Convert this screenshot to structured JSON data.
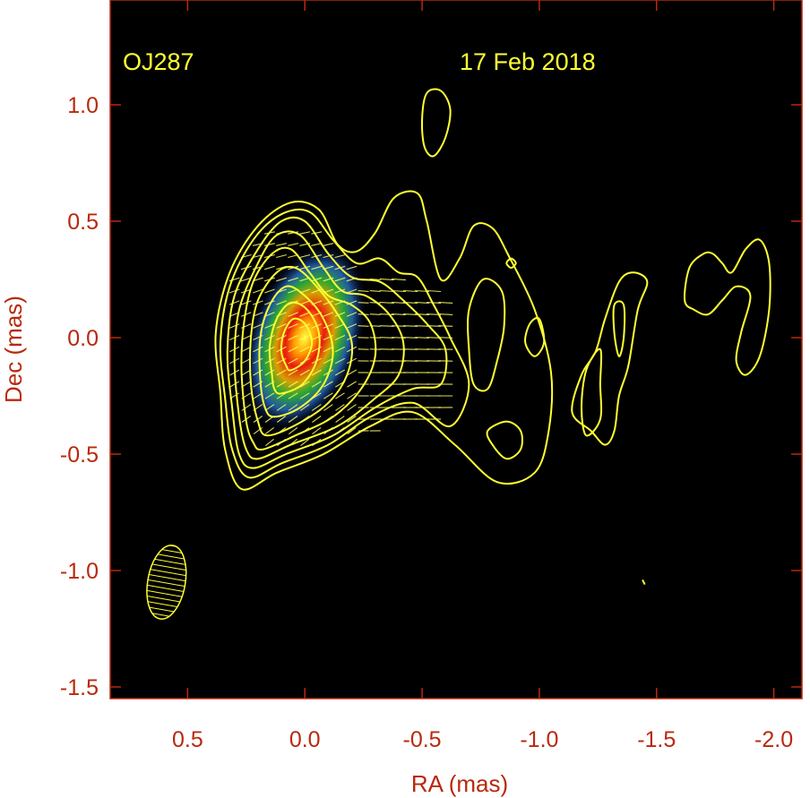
{
  "chart_data": {
    "type": "contour-map",
    "source_label": "OJ287",
    "date_label": "17 Feb 2018",
    "xlabel": "RA (mas)",
    "ylabel": "Dec (mas)",
    "xlim": [
      0.83,
      -2.12
    ],
    "ylim": [
      -1.55,
      1.45
    ],
    "xticks": [
      {
        "value": 0.5,
        "label": "0.5"
      },
      {
        "value": 0.0,
        "label": "0.0"
      },
      {
        "value": -0.5,
        "label": "-0.5"
      },
      {
        "value": -1.0,
        "label": "-1.0"
      },
      {
        "value": -1.5,
        "label": "-1.5"
      },
      {
        "value": -2.0,
        "label": "-2.0"
      }
    ],
    "yticks": [
      {
        "value": 1.0,
        "label": "1.0"
      },
      {
        "value": 0.5,
        "label": "0.5"
      },
      {
        "value": 0.0,
        "label": "0.0"
      },
      {
        "value": -0.5,
        "label": "-0.5"
      },
      {
        "value": -1.0,
        "label": "-1.0"
      },
      {
        "value": -1.5,
        "label": "-1.5"
      }
    ],
    "colors": {
      "background": "#000000",
      "axes_text": "#b8290e",
      "contours": "#ffff33",
      "annotations": "#ffff33"
    },
    "core": {
      "ra": 0.0,
      "dec": 0.0
    },
    "beam": {
      "ra": 0.59,
      "dec": -1.05,
      "major_mas": 0.32,
      "minor_mas": 0.16,
      "pa_deg": 10
    },
    "contours": [
      [
        [
          0.27,
          -0.65
        ],
        [
          0.12,
          -0.58
        ],
        [
          -0.08,
          -0.5
        ],
        [
          -0.28,
          -0.38
        ],
        [
          -0.46,
          -0.32
        ],
        [
          -0.64,
          -0.46
        ],
        [
          -0.82,
          -0.62
        ],
        [
          -0.98,
          -0.58
        ],
        [
          -1.04,
          -0.4
        ],
        [
          -1.05,
          -0.15
        ],
        [
          -0.98,
          0.12
        ],
        [
          -0.87,
          0.35
        ],
        [
          -0.8,
          0.47
        ],
        [
          -0.72,
          0.48
        ],
        [
          -0.66,
          0.34
        ],
        [
          -0.58,
          0.25
        ],
        [
          -0.52,
          0.5
        ],
        [
          -0.48,
          0.62
        ],
        [
          -0.38,
          0.6
        ],
        [
          -0.3,
          0.45
        ],
        [
          -0.22,
          0.37
        ],
        [
          -0.14,
          0.4
        ],
        [
          -0.06,
          0.55
        ],
        [
          0.06,
          0.58
        ],
        [
          0.2,
          0.48
        ],
        [
          0.32,
          0.28
        ],
        [
          0.38,
          0.02
        ],
        [
          0.36,
          -0.24
        ],
        [
          0.34,
          -0.48
        ]
      ],
      [
        [
          0.24,
          -0.6
        ],
        [
          0.1,
          -0.54
        ],
        [
          -0.1,
          -0.46
        ],
        [
          -0.28,
          -0.34
        ],
        [
          -0.46,
          -0.28
        ],
        [
          -0.62,
          -0.38
        ],
        [
          -0.7,
          -0.2
        ],
        [
          -0.62,
          0.0
        ],
        [
          -0.55,
          0.14
        ],
        [
          -0.48,
          0.26
        ],
        [
          -0.4,
          0.28
        ],
        [
          -0.32,
          0.34
        ],
        [
          -0.22,
          0.32
        ],
        [
          -0.12,
          0.42
        ],
        [
          -0.02,
          0.54
        ],
        [
          0.1,
          0.53
        ],
        [
          0.22,
          0.42
        ],
        [
          0.32,
          0.22
        ],
        [
          0.36,
          -0.02
        ],
        [
          0.34,
          -0.26
        ],
        [
          0.31,
          -0.48
        ]
      ],
      [
        [
          0.22,
          -0.56
        ],
        [
          0.08,
          -0.5
        ],
        [
          -0.12,
          -0.42
        ],
        [
          -0.3,
          -0.3
        ],
        [
          -0.46,
          -0.22
        ],
        [
          -0.58,
          -0.2
        ],
        [
          -0.6,
          -0.05
        ],
        [
          -0.52,
          0.06
        ],
        [
          -0.42,
          0.16
        ],
        [
          -0.32,
          0.24
        ],
        [
          -0.2,
          0.26
        ],
        [
          -0.1,
          0.36
        ],
        [
          0.0,
          0.5
        ],
        [
          0.1,
          0.5
        ],
        [
          0.2,
          0.38
        ],
        [
          0.3,
          0.18
        ],
        [
          0.33,
          -0.06
        ],
        [
          0.31,
          -0.3
        ],
        [
          0.28,
          -0.5
        ]
      ],
      [
        [
          0.2,
          -0.52
        ],
        [
          0.06,
          -0.46
        ],
        [
          -0.14,
          -0.38
        ],
        [
          -0.3,
          -0.26
        ],
        [
          -0.4,
          -0.16
        ],
        [
          -0.42,
          -0.02
        ],
        [
          -0.36,
          0.1
        ],
        [
          -0.26,
          0.18
        ],
        [
          -0.16,
          0.2
        ],
        [
          -0.08,
          0.3
        ],
        [
          0.02,
          0.44
        ],
        [
          0.12,
          0.44
        ],
        [
          0.2,
          0.32
        ],
        [
          0.28,
          0.12
        ],
        [
          0.3,
          -0.1
        ],
        [
          0.28,
          -0.34
        ],
        [
          0.25,
          -0.48
        ]
      ],
      [
        [
          0.18,
          -0.48
        ],
        [
          0.04,
          -0.42
        ],
        [
          -0.12,
          -0.34
        ],
        [
          -0.24,
          -0.22
        ],
        [
          -0.3,
          -0.08
        ],
        [
          -0.28,
          0.06
        ],
        [
          -0.2,
          0.14
        ],
        [
          -0.1,
          0.18
        ],
        [
          -0.02,
          0.28
        ],
        [
          0.06,
          0.38
        ],
        [
          0.14,
          0.36
        ],
        [
          0.22,
          0.24
        ],
        [
          0.26,
          0.06
        ],
        [
          0.27,
          -0.14
        ],
        [
          0.25,
          -0.36
        ],
        [
          0.22,
          -0.45
        ]
      ],
      [
        [
          0.16,
          -0.42
        ],
        [
          0.03,
          -0.37
        ],
        [
          -0.1,
          -0.28
        ],
        [
          -0.18,
          -0.16
        ],
        [
          -0.2,
          -0.02
        ],
        [
          -0.14,
          0.1
        ],
        [
          -0.05,
          0.22
        ],
        [
          0.04,
          0.3
        ],
        [
          0.12,
          0.28
        ],
        [
          0.2,
          0.16
        ],
        [
          0.23,
          0.0
        ],
        [
          0.23,
          -0.2
        ],
        [
          0.2,
          -0.36
        ]
      ],
      [
        [
          0.13,
          -0.34
        ],
        [
          0.02,
          -0.3
        ],
        [
          -0.08,
          -0.2
        ],
        [
          -0.12,
          -0.06
        ],
        [
          -0.08,
          0.08
        ],
        [
          0.0,
          0.18
        ],
        [
          0.08,
          0.22
        ],
        [
          0.15,
          0.14
        ],
        [
          0.19,
          0.0
        ],
        [
          0.19,
          -0.18
        ],
        [
          0.17,
          -0.3
        ]
      ],
      [
        [
          0.1,
          -0.24
        ],
        [
          0.01,
          -0.2
        ],
        [
          -0.05,
          -0.1
        ],
        [
          -0.06,
          0.02
        ],
        [
          -0.01,
          0.12
        ],
        [
          0.06,
          0.15
        ],
        [
          0.12,
          0.08
        ],
        [
          0.15,
          -0.04
        ],
        [
          0.14,
          -0.16
        ],
        [
          0.13,
          -0.22
        ]
      ],
      [
        [
          0.06,
          -0.14
        ],
        [
          0.0,
          -0.1
        ],
        [
          -0.03,
          -0.02
        ],
        [
          0.0,
          0.06
        ],
        [
          0.05,
          0.08
        ],
        [
          0.09,
          0.02
        ],
        [
          0.1,
          -0.06
        ],
        [
          0.08,
          -0.12
        ]
      ],
      [
        [
          -0.55,
          0.78
        ],
        [
          -0.6,
          0.86
        ],
        [
          -0.62,
          0.98
        ],
        [
          -0.58,
          1.06
        ],
        [
          -0.52,
          1.05
        ],
        [
          -0.5,
          0.94
        ],
        [
          -0.51,
          0.82
        ]
      ],
      [
        [
          -0.76,
          0.25
        ],
        [
          -0.84,
          0.2
        ],
        [
          -0.85,
          0.05
        ],
        [
          -0.82,
          -0.1
        ],
        [
          -0.78,
          -0.22
        ],
        [
          -0.72,
          -0.2
        ],
        [
          -0.7,
          -0.05
        ],
        [
          -0.7,
          0.12
        ]
      ],
      [
        [
          -0.78,
          -0.4
        ],
        [
          -0.8,
          -0.46
        ],
        [
          -0.86,
          -0.52
        ],
        [
          -0.92,
          -0.48
        ],
        [
          -0.92,
          -0.4
        ],
        [
          -0.86,
          -0.36
        ]
      ],
      [
        [
          -0.94,
          -0.02
        ],
        [
          -0.96,
          0.06
        ],
        [
          -1.0,
          0.08
        ],
        [
          -1.02,
          -0.02
        ],
        [
          -0.98,
          -0.08
        ]
      ],
      [
        [
          -1.14,
          -0.32
        ],
        [
          -1.22,
          -0.4
        ],
        [
          -1.28,
          -0.46
        ],
        [
          -1.32,
          -0.4
        ],
        [
          -1.34,
          -0.25
        ],
        [
          -1.38,
          -0.12
        ],
        [
          -1.42,
          0.12
        ],
        [
          -1.46,
          0.24
        ],
        [
          -1.4,
          0.28
        ],
        [
          -1.34,
          0.24
        ],
        [
          -1.28,
          0.08
        ],
        [
          -1.24,
          -0.06
        ],
        [
          -1.18,
          -0.16
        ]
      ],
      [
        [
          -1.26,
          -0.05
        ],
        [
          -1.26,
          -0.2
        ],
        [
          -1.26,
          -0.35
        ],
        [
          -1.2,
          -0.42
        ],
        [
          -1.18,
          -0.3
        ],
        [
          -1.2,
          -0.14
        ]
      ],
      [
        [
          -1.36,
          0.14
        ],
        [
          -1.36,
          0.0
        ],
        [
          -1.34,
          -0.08
        ],
        [
          -1.32,
          0.02
        ],
        [
          -1.32,
          0.14
        ]
      ],
      [
        [
          -1.62,
          0.16
        ],
        [
          -1.64,
          0.3
        ],
        [
          -1.7,
          0.36
        ],
        [
          -1.74,
          0.36
        ],
        [
          -1.78,
          0.32
        ],
        [
          -1.82,
          0.28
        ],
        [
          -1.88,
          0.38
        ],
        [
          -1.94,
          0.42
        ],
        [
          -1.98,
          0.32
        ],
        [
          -1.98,
          0.12
        ],
        [
          -1.94,
          -0.08
        ],
        [
          -1.88,
          -0.16
        ],
        [
          -1.84,
          -0.1
        ],
        [
          -1.86,
          0.02
        ],
        [
          -1.9,
          0.18
        ],
        [
          -1.84,
          0.22
        ],
        [
          -1.78,
          0.16
        ],
        [
          -1.72,
          0.1
        ],
        [
          -1.66,
          0.12
        ]
      ],
      [
        [
          -0.86,
          0.32
        ],
        [
          -0.88,
          0.34
        ],
        [
          -0.9,
          0.32
        ],
        [
          -0.88,
          0.3
        ]
      ],
      [
        [
          -1.44,
          -1.04
        ],
        [
          -1.45,
          -1.06
        ]
      ]
    ]
  }
}
